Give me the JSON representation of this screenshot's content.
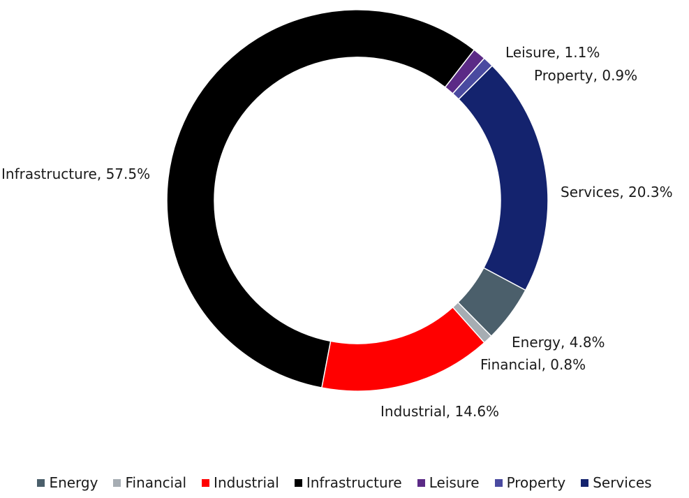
{
  "chart_data": {
    "type": "pie",
    "variant": "donut",
    "title": "",
    "legend_position": "bottom",
    "slices": [
      {
        "name": "Services",
        "value": 20.3,
        "label": "Services, 20.3%",
        "color": "#14236e"
      },
      {
        "name": "Energy",
        "value": 4.8,
        "label": "Energy, 4.8%",
        "color": "#4b5f6b"
      },
      {
        "name": "Financial",
        "value": 0.8,
        "label": "Financial, 0.8%",
        "color": "#a6adb3"
      },
      {
        "name": "Industrial",
        "value": 14.6,
        "label": "Industrial, 14.6%",
        "color": "#ff0000"
      },
      {
        "name": "Infrastructure",
        "value": 57.5,
        "label": "Infrastructure, 57.5%",
        "color": "#000000"
      },
      {
        "name": "Leisure",
        "value": 1.1,
        "label": "Leisure, 1.1%",
        "color": "#5b2a86"
      },
      {
        "name": "Property",
        "value": 0.9,
        "label": "Property, 0.9%",
        "color": "#4a4aa0"
      }
    ],
    "legend": [
      {
        "name": "Energy",
        "color": "#4b5f6b"
      },
      {
        "name": "Financial",
        "color": "#a6adb3"
      },
      {
        "name": "Industrial",
        "color": "#ff0000"
      },
      {
        "name": "Infrastructure",
        "color": "#000000"
      },
      {
        "name": "Leisure",
        "color": "#5b2a86"
      },
      {
        "name": "Property",
        "color": "#4a4aa0"
      },
      {
        "name": "Services",
        "color": "#14236e"
      }
    ]
  }
}
